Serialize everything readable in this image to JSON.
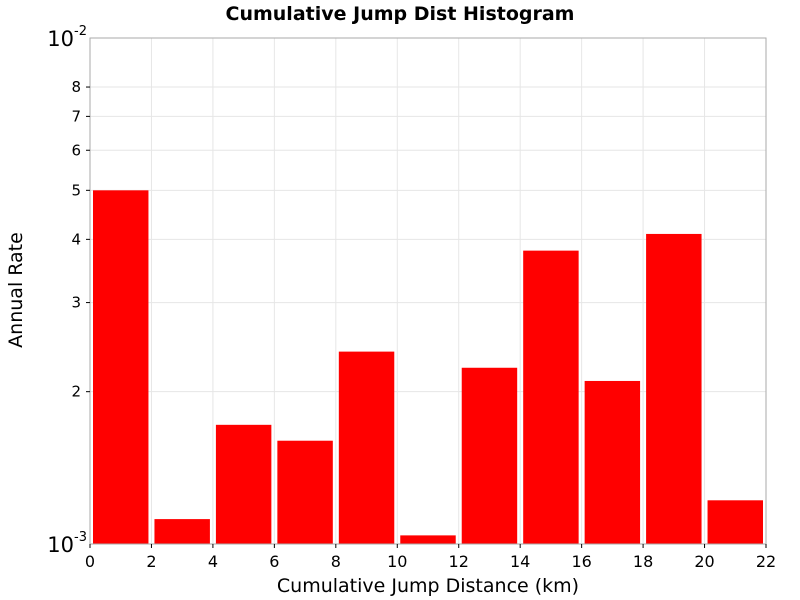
{
  "chart_data": {
    "type": "bar",
    "title": "Cumulative Jump Dist Histogram",
    "xlabel": "Cumulative Jump Distance (km)",
    "ylabel": "Annual Rate",
    "x_ticks": [
      "0",
      "2",
      "4",
      "6",
      "8",
      "10",
      "12",
      "14",
      "16",
      "18",
      "20",
      "22"
    ],
    "xlim": [
      0,
      22
    ],
    "y_scale": "log",
    "ylim": [
      0.001,
      0.01
    ],
    "y_minor_ticks": [
      {
        "value": 0.002,
        "label": "2"
      },
      {
        "value": 0.003,
        "label": "3"
      },
      {
        "value": 0.004,
        "label": "4"
      },
      {
        "value": 0.005,
        "label": "5"
      },
      {
        "value": 0.006,
        "label": "6"
      },
      {
        "value": 0.007,
        "label": "7"
      },
      {
        "value": 0.008,
        "label": "8"
      }
    ],
    "y_major_ticks": [
      {
        "value": 0.001,
        "base": "10",
        "exponent": "-3"
      },
      {
        "value": 0.01,
        "base": "10",
        "exponent": "-2"
      }
    ],
    "bin_width": 2,
    "bins": [
      {
        "center": 1,
        "value": 0.005
      },
      {
        "center": 3,
        "value": 0.00112
      },
      {
        "center": 5,
        "value": 0.00172
      },
      {
        "center": 7,
        "value": 0.0016
      },
      {
        "center": 9,
        "value": 0.0024
      },
      {
        "center": 11,
        "value": 0.00104
      },
      {
        "center": 13,
        "value": 0.00223
      },
      {
        "center": 15,
        "value": 0.0038
      },
      {
        "center": 17,
        "value": 0.0021
      },
      {
        "center": 19,
        "value": 0.0041
      },
      {
        "center": 21,
        "value": 0.00122
      }
    ],
    "bar_color": "#ff0000",
    "grid": true,
    "legend": "none"
  }
}
